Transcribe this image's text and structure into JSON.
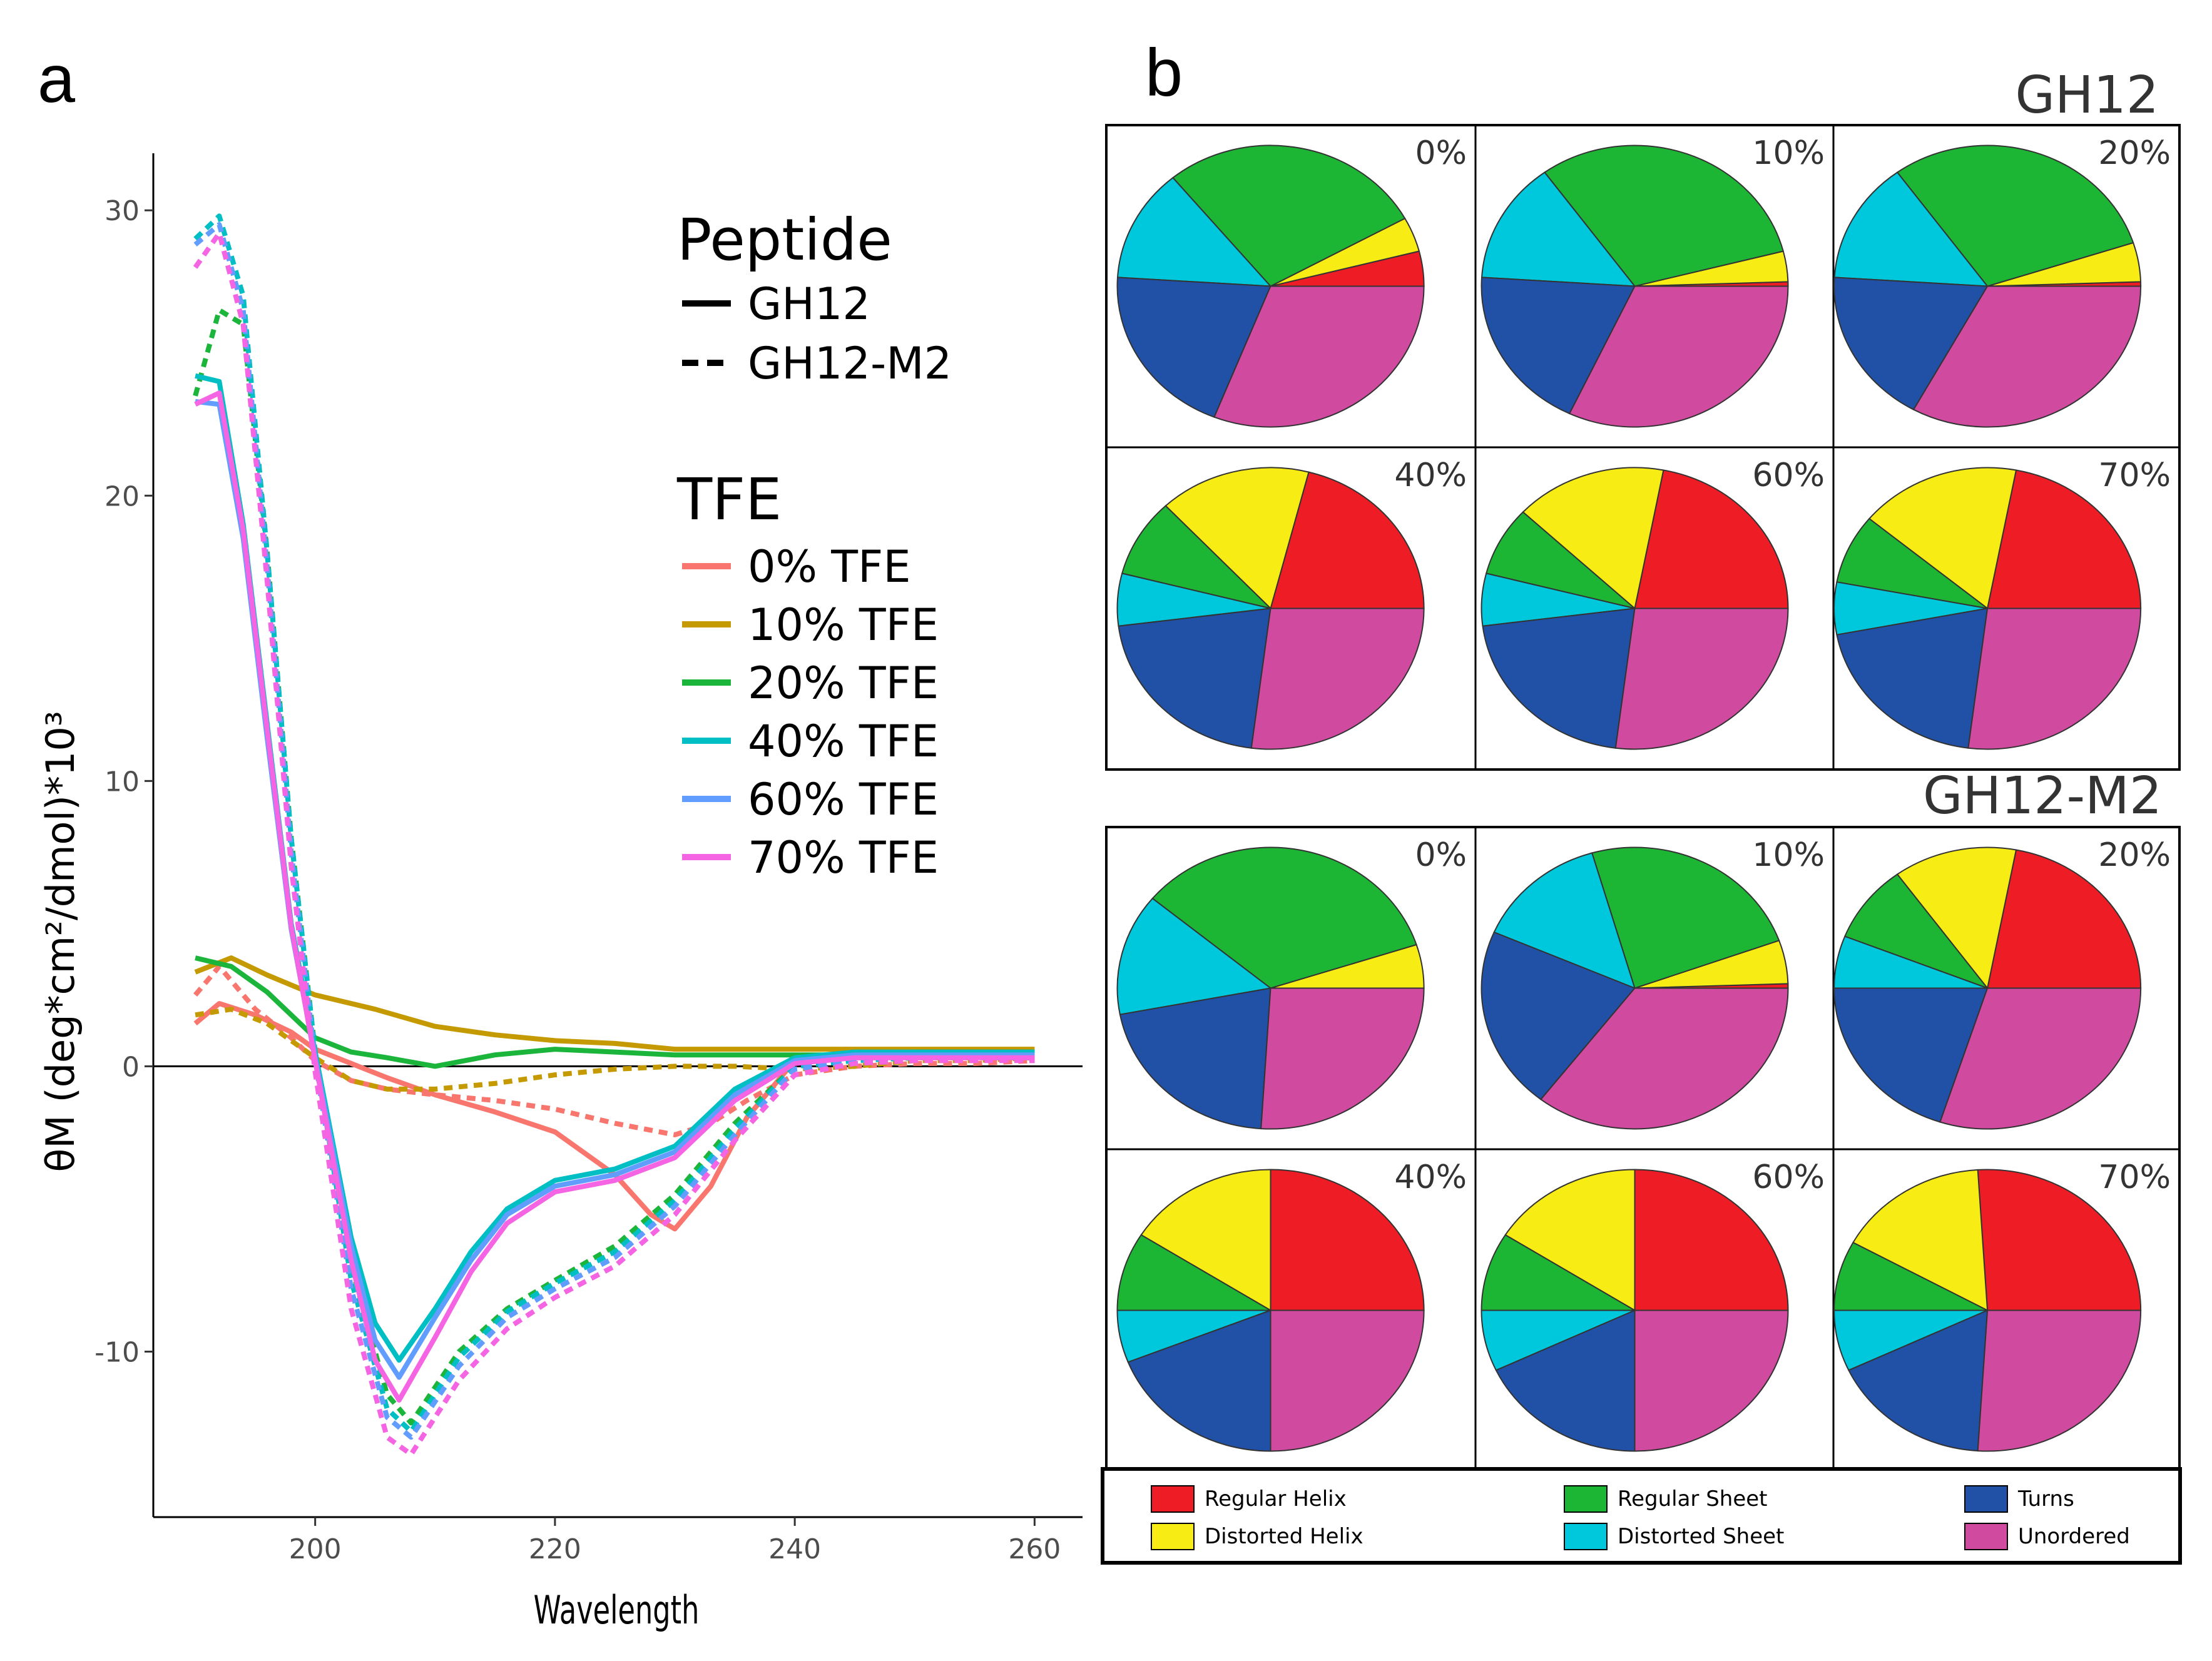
{
  "panel_a": {
    "letter": "a",
    "legend": {
      "peptide_title": "Peptide",
      "peptides": [
        {
          "label": "GH12",
          "style": "solid"
        },
        {
          "label": "GH12-M2",
          "style": "dashed"
        }
      ],
      "tfe_title": "TFE"
    }
  },
  "panel_b": {
    "letter": "b",
    "key": [
      {
        "label": "Regular Helix",
        "color": "#ee1c24"
      },
      {
        "label": "Distorted Helix",
        "color": "#f7ec13"
      },
      {
        "label": "Regular Sheet",
        "color": "#1db534"
      },
      {
        "label": "Distorted Sheet",
        "color": "#00c8dc"
      },
      {
        "label": "Turns",
        "color": "#2151a6"
      },
      {
        "label": "Unordered",
        "color": "#d04a9f"
      }
    ]
  },
  "chart_data": [
    {
      "type": "line",
      "title": "",
      "xlabel": "Wavelength",
      "ylabel": "θM (deg*cm²/dmol)*10³",
      "xlim": [
        186.5,
        264
      ],
      "ylim": [
        -15.8,
        32
      ],
      "xticks": [
        200,
        220,
        240,
        260
      ],
      "yticks": [
        -10,
        0,
        10,
        20,
        30
      ],
      "tick_labels_x": [
        "200",
        "220",
        "240",
        "260"
      ],
      "tick_labels_y": [
        "-10",
        "0",
        "10",
        "20",
        "30"
      ],
      "reference_line_y": 0,
      "series": [
        {
          "name": "0% TFE",
          "peptide": "GH12",
          "color": "#f8766d",
          "style": "solid",
          "x": [
            190,
            192,
            195,
            198,
            200,
            203,
            206,
            210,
            215,
            220,
            225,
            228,
            230,
            233,
            236,
            240,
            245,
            250,
            255,
            260
          ],
          "y": [
            1.5,
            2.2,
            1.8,
            1.2,
            0.6,
            0.1,
            -0.4,
            -1.0,
            -1.6,
            -2.3,
            -3.8,
            -5.2,
            -5.7,
            -4.2,
            -1.8,
            0.2,
            0.3,
            0.3,
            0.3,
            0.4
          ]
        },
        {
          "name": "0% TFE",
          "peptide": "GH12-M2",
          "color": "#f8766d",
          "style": "dashed",
          "x": [
            190,
            192,
            195,
            198,
            200,
            203,
            206,
            210,
            215,
            220,
            225,
            230,
            233,
            236,
            240,
            245,
            250,
            255,
            260
          ],
          "y": [
            2.5,
            3.5,
            2.0,
            1.0,
            0.2,
            -0.5,
            -0.8,
            -1.0,
            -1.2,
            -1.5,
            -2.0,
            -2.4,
            -2.0,
            -1.2,
            -0.3,
            0.0,
            0.1,
            0.1,
            0.2
          ]
        },
        {
          "name": "10% TFE",
          "peptide": "GH12",
          "color": "#c49a00",
          "style": "solid",
          "x": [
            190,
            193,
            196,
            200,
            205,
            210,
            215,
            220,
            225,
            230,
            235,
            240,
            245,
            250,
            255,
            260
          ],
          "y": [
            3.3,
            3.8,
            3.2,
            2.5,
            2.0,
            1.4,
            1.1,
            0.9,
            0.8,
            0.6,
            0.6,
            0.6,
            0.6,
            0.6,
            0.6,
            0.6
          ]
        },
        {
          "name": "10% TFE",
          "peptide": "GH12-M2",
          "color": "#c49a00",
          "style": "dashed",
          "x": [
            190,
            193,
            196,
            200,
            203,
            206,
            210,
            215,
            220,
            225,
            230,
            235,
            240,
            245,
            250,
            255,
            260
          ],
          "y": [
            1.8,
            2.0,
            1.5,
            0.3,
            -0.5,
            -0.8,
            -0.8,
            -0.6,
            -0.3,
            -0.1,
            0.0,
            0.0,
            -0.1,
            0.0,
            0.2,
            0.2,
            0.3
          ]
        },
        {
          "name": "20% TFE",
          "peptide": "GH12",
          "color": "#1cb53c",
          "style": "solid",
          "x": [
            190,
            193,
            196,
            200,
            203,
            206,
            210,
            215,
            220,
            225,
            230,
            235,
            240,
            245,
            250,
            255,
            260
          ],
          "y": [
            3.8,
            3.5,
            2.6,
            1.0,
            0.5,
            0.3,
            0.0,
            0.4,
            0.6,
            0.5,
            0.4,
            0.4,
            0.4,
            0.4,
            0.5,
            0.5,
            0.5
          ]
        },
        {
          "name": "20% TFE",
          "peptide": "GH12-M2",
          "color": "#1cb53c",
          "style": "dashed",
          "x": [
            190,
            192,
            194,
            196,
            198,
            200,
            203,
            206,
            208,
            212,
            216,
            220,
            225,
            230,
            235,
            240,
            245,
            250,
            255,
            260
          ],
          "y": [
            23.5,
            26.5,
            26.0,
            18.0,
            8.0,
            0.5,
            -7.0,
            -11.5,
            -12.5,
            -10.0,
            -8.5,
            -7.5,
            -6.3,
            -4.5,
            -2.0,
            0.0,
            0.2,
            0.3,
            0.3,
            0.3
          ]
        },
        {
          "name": "40% TFE",
          "peptide": "GH12",
          "color": "#00bfc4",
          "style": "solid",
          "x": [
            190,
            192,
            194,
            196,
            198,
            200,
            203,
            205,
            207,
            210,
            213,
            216,
            220,
            225,
            230,
            235,
            240,
            245,
            250,
            255,
            260
          ],
          "y": [
            24.2,
            24.0,
            19.0,
            12.0,
            5.0,
            0.5,
            -6.0,
            -9.0,
            -10.3,
            -8.5,
            -6.5,
            -5.0,
            -4.0,
            -3.6,
            -2.8,
            -0.8,
            0.3,
            0.5,
            0.5,
            0.5,
            0.5
          ]
        },
        {
          "name": "40% TFE",
          "peptide": "GH12-M2",
          "color": "#00bfc4",
          "style": "dashed",
          "x": [
            190,
            192,
            194,
            196,
            198,
            200,
            203,
            206,
            208,
            212,
            216,
            220,
            225,
            230,
            235,
            240,
            245,
            250,
            255,
            260
          ],
          "y": [
            29.0,
            29.8,
            27.0,
            18.0,
            8.0,
            0.5,
            -7.5,
            -12.0,
            -12.8,
            -10.2,
            -8.6,
            -7.6,
            -6.5,
            -4.7,
            -2.2,
            0.0,
            0.2,
            0.3,
            0.4,
            0.4
          ]
        },
        {
          "name": "60% TFE",
          "peptide": "GH12",
          "color": "#619cff",
          "style": "solid",
          "x": [
            190,
            192,
            194,
            196,
            198,
            200,
            203,
            205,
            207,
            210,
            213,
            216,
            220,
            225,
            230,
            235,
            240,
            245,
            250,
            255,
            260
          ],
          "y": [
            23.3,
            23.2,
            18.5,
            11.5,
            4.8,
            0.3,
            -6.3,
            -9.6,
            -10.9,
            -8.8,
            -6.8,
            -5.2,
            -4.2,
            -3.8,
            -3.0,
            -1.0,
            0.2,
            0.4,
            0.4,
            0.4,
            0.4
          ]
        },
        {
          "name": "60% TFE",
          "peptide": "GH12-M2",
          "color": "#619cff",
          "style": "dashed",
          "x": [
            190,
            192,
            194,
            196,
            198,
            200,
            203,
            206,
            208,
            212,
            216,
            220,
            225,
            230,
            235,
            240,
            245,
            250,
            255,
            260
          ],
          "y": [
            28.8,
            29.5,
            26.5,
            17.5,
            7.5,
            0.2,
            -7.8,
            -12.3,
            -13.0,
            -10.5,
            -8.8,
            -7.8,
            -6.7,
            -4.9,
            -2.4,
            -0.1,
            0.2,
            0.3,
            0.3,
            0.3
          ]
        },
        {
          "name": "70% TFE",
          "peptide": "GH12",
          "color": "#f564e3",
          "style": "solid",
          "x": [
            190,
            192,
            194,
            196,
            198,
            200,
            203,
            205,
            207,
            210,
            213,
            216,
            220,
            225,
            230,
            235,
            240,
            245,
            250,
            255,
            260
          ],
          "y": [
            23.2,
            23.6,
            18.8,
            11.8,
            4.9,
            0.2,
            -6.8,
            -10.3,
            -11.7,
            -9.5,
            -7.2,
            -5.5,
            -4.4,
            -4.0,
            -3.2,
            -1.2,
            0.1,
            0.3,
            0.3,
            0.3,
            0.3
          ]
        },
        {
          "name": "70% TFE",
          "peptide": "GH12-M2",
          "color": "#f564e3",
          "style": "dashed",
          "x": [
            190,
            192,
            194,
            196,
            198,
            200,
            203,
            206,
            208,
            212,
            216,
            220,
            225,
            230,
            235,
            240,
            245,
            250,
            255,
            260
          ],
          "y": [
            28.0,
            29.2,
            26.0,
            17.0,
            7.0,
            -0.2,
            -8.5,
            -13.0,
            -13.6,
            -11.0,
            -9.2,
            -8.1,
            -7.0,
            -5.2,
            -2.6,
            -0.3,
            0.1,
            0.2,
            0.2,
            0.2
          ]
        }
      ],
      "legend_entries": [
        {
          "label": "0% TFE",
          "color": "#f8766d"
        },
        {
          "label": "10% TFE",
          "color": "#c49a00"
        },
        {
          "label": "20% TFE",
          "color": "#1cb53c"
        },
        {
          "label": "40% TFE",
          "color": "#00bfc4"
        },
        {
          "label": "60% TFE",
          "color": "#619cff"
        },
        {
          "label": "70% TFE",
          "color": "#f564e3"
        }
      ]
    },
    {
      "type": "pie",
      "title": "GH12",
      "slice_order": [
        "Regular Helix",
        "Distorted Helix",
        "Regular Sheet",
        "Distorted Sheet",
        "Turns",
        "Unordered"
      ],
      "slice_colors": [
        "#ee1c24",
        "#f7ec13",
        "#1db534",
        "#00c8dc",
        "#2151a6",
        "#d04a9f"
      ],
      "pies": [
        {
          "label": "0%",
          "values": [
            4,
            4,
            28,
            13,
            20,
            31
          ]
        },
        {
          "label": "10%",
          "values": [
            0.5,
            3.5,
            31,
            14,
            19,
            32
          ]
        },
        {
          "label": "20%",
          "values": [
            0.5,
            4.5,
            30,
            14,
            18,
            33
          ]
        },
        {
          "label": "40%",
          "values": [
            21,
            16,
            9,
            6,
            21,
            27
          ]
        },
        {
          "label": "60%",
          "values": [
            22,
            16,
            8,
            6,
            21,
            27
          ]
        },
        {
          "label": "70%",
          "values": [
            22,
            17,
            8,
            6,
            20,
            27
          ]
        }
      ]
    },
    {
      "type": "pie",
      "title": "GH12-M2",
      "slice_order": [
        "Regular Helix",
        "Distorted Helix",
        "Regular Sheet",
        "Distorted Sheet",
        "Turns",
        "Unordered"
      ],
      "slice_colors": [
        "#ee1c24",
        "#f7ec13",
        "#1db534",
        "#00c8dc",
        "#2151a6",
        "#d04a9f"
      ],
      "pies": [
        {
          "label": "0%",
          "values": [
            0,
            5,
            34,
            14,
            21,
            26
          ]
        },
        {
          "label": "10%",
          "values": [
            0.5,
            5,
            24,
            14,
            21,
            35.5
          ]
        },
        {
          "label": "20%",
          "values": [
            22,
            13,
            9,
            6,
            20,
            30
          ]
        },
        {
          "label": "40%",
          "values": [
            25,
            16,
            9,
            6,
            19,
            25
          ]
        },
        {
          "label": "60%",
          "values": [
            25,
            16,
            9,
            7,
            18,
            25
          ]
        },
        {
          "label": "70%",
          "values": [
            26,
            16,
            8,
            7,
            17,
            26
          ]
        }
      ]
    }
  ]
}
